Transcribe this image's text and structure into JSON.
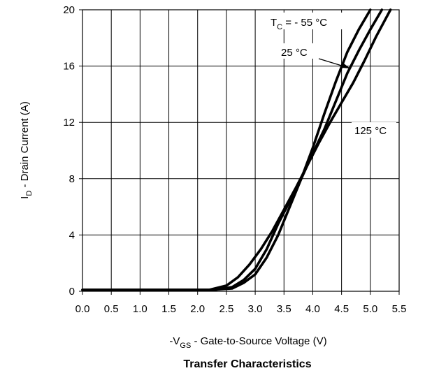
{
  "chart_data": {
    "type": "line",
    "title": "Transfer Characteristics",
    "xlabel": {
      "prefix": "-V",
      "sub": "GS",
      "text": "  -  Gate-to-Source Voltage (V)"
    },
    "ylabel": {
      "prefix": "I",
      "sub": "D",
      "text": "  -  Drain Current (A)"
    },
    "xlim": [
      0.0,
      5.5
    ],
    "ylim": [
      0,
      20
    ],
    "xticks": [
      "0.0",
      "0.5",
      "1.0",
      "1.5",
      "2.0",
      "2.5",
      "3.0",
      "3.5",
      "4.0",
      "4.5",
      "5.0",
      "5.5"
    ],
    "yticks": [
      "0",
      "4",
      "8",
      "12",
      "16",
      "20"
    ],
    "grid": true,
    "series": [
      {
        "name": "TC = - 55 °C",
        "x": [
          0.0,
          2.2,
          2.6,
          2.8,
          3.0,
          3.2,
          3.4,
          3.6,
          3.8,
          4.0,
          4.2,
          4.4,
          4.6,
          4.8,
          5.0
        ],
        "y": [
          0.1,
          0.1,
          0.2,
          0.6,
          1.2,
          2.4,
          4.0,
          6.0,
          8.0,
          10.2,
          12.6,
          14.9,
          17.0,
          18.6,
          20.0
        ]
      },
      {
        "name": "25 °C",
        "x": [
          0.0,
          2.3,
          2.6,
          2.8,
          3.0,
          3.2,
          3.4,
          3.6,
          3.8,
          4.0,
          4.2,
          4.4,
          4.6,
          4.8,
          5.0,
          5.2
        ],
        "y": [
          0.1,
          0.1,
          0.3,
          0.8,
          1.6,
          3.0,
          4.8,
          6.4,
          8.0,
          9.8,
          11.5,
          13.5,
          15.5,
          17.1,
          18.6,
          20.0
        ]
      },
      {
        "name": "125 °C",
        "x": [
          0.0,
          2.2,
          2.5,
          2.7,
          2.9,
          3.1,
          3.3,
          3.5,
          3.7,
          3.9,
          4.1,
          4.3,
          4.5,
          4.7,
          4.9,
          5.1,
          5.35
        ],
        "y": [
          0.1,
          0.1,
          0.4,
          1.0,
          1.9,
          3.0,
          4.3,
          5.8,
          7.3,
          8.9,
          10.5,
          12.0,
          13.4,
          14.8,
          16.4,
          18.1,
          20.0
        ]
      }
    ],
    "annotations": [
      {
        "prefix": "T",
        "sub": "C",
        "text": " = - 55 °C"
      },
      {
        "text": "25 °C"
      },
      {
        "text": "125 °C"
      }
    ]
  }
}
